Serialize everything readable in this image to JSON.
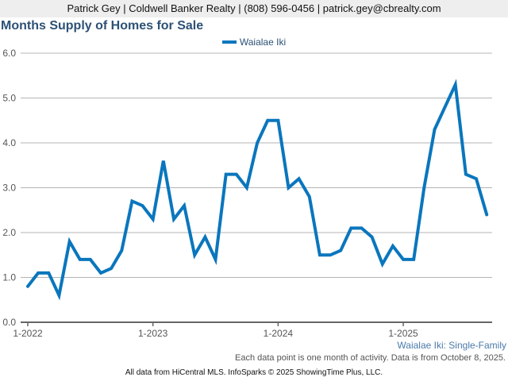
{
  "header": {
    "contact": "Patrick Gey | Coldwell Banker Realty | (808) 596-0456 | patrick.gey@cbrealty.com"
  },
  "colors": {
    "series": "#0a76bd",
    "title": "#2d5176",
    "grid": "#b4b4b4",
    "axis": "#666666"
  },
  "chart_data": {
    "type": "line",
    "title": "Months Supply of Homes for Sale",
    "xlabel": "",
    "ylabel": "",
    "ylim": [
      0,
      6
    ],
    "yticks": [
      "0.0",
      "1.0",
      "2.0",
      "3.0",
      "4.0",
      "5.0",
      "6.0"
    ],
    "xtick_labels": [
      "1-2022",
      "1-2023",
      "1-2024",
      "1-2025"
    ],
    "xtick_indices": [
      0,
      12,
      24,
      36
    ],
    "grid": true,
    "legend_position": "top-center",
    "x": [
      "1-2022",
      "2-2022",
      "3-2022",
      "4-2022",
      "5-2022",
      "6-2022",
      "7-2022",
      "8-2022",
      "9-2022",
      "10-2022",
      "11-2022",
      "12-2022",
      "1-2023",
      "2-2023",
      "3-2023",
      "4-2023",
      "5-2023",
      "6-2023",
      "7-2023",
      "8-2023",
      "9-2023",
      "10-2023",
      "11-2023",
      "12-2023",
      "1-2024",
      "2-2024",
      "3-2024",
      "4-2024",
      "5-2024",
      "6-2024",
      "7-2024",
      "8-2024",
      "9-2024",
      "10-2024",
      "11-2024",
      "12-2024",
      "1-2025",
      "2-2025",
      "3-2025",
      "4-2025",
      "5-2025",
      "6-2025",
      "7-2025",
      "8-2025",
      "9-2025"
    ],
    "series": [
      {
        "name": "Waialae Iki",
        "values": [
          0.8,
          1.1,
          1.1,
          0.6,
          1.8,
          1.4,
          1.4,
          1.1,
          1.2,
          1.6,
          2.7,
          2.6,
          2.3,
          3.6,
          2.3,
          2.6,
          1.5,
          1.9,
          1.4,
          3.3,
          3.3,
          3.0,
          4.0,
          4.5,
          4.5,
          3.0,
          3.2,
          2.8,
          1.5,
          1.5,
          1.6,
          2.1,
          2.1,
          1.9,
          1.3,
          1.7,
          1.4,
          1.4,
          3.0,
          4.3,
          4.8,
          5.3,
          3.3,
          3.2,
          2.4
        ]
      }
    ]
  },
  "captions": {
    "series_caption": "Waialae Iki: Single-Family",
    "note": "Each data point is one month of activity. Data is from October 8, 2025.",
    "footer": "All data from HiCentral MLS. InfoSparks © 2025 ShowingTime Plus, LLC."
  }
}
